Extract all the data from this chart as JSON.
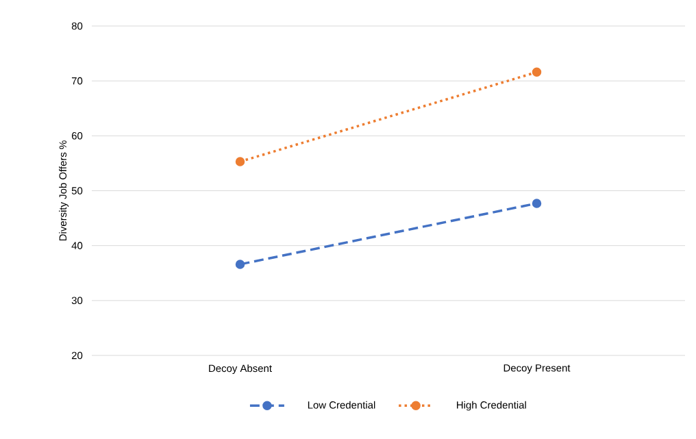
{
  "chart_data": {
    "type": "line",
    "ylabel": "Diversity Job Offers %",
    "categories": [
      "Decoy Absent",
      "Decoy Present"
    ],
    "series": [
      {
        "name": "Low Credential",
        "color": "#4472c4",
        "values": [
          36.6,
          47.7
        ],
        "line_style": "dashed"
      },
      {
        "name": "High Credential",
        "color": "#ed7d31",
        "values": [
          55.3,
          71.6
        ],
        "line_style": "dotted"
      }
    ],
    "ylim": [
      20,
      80
    ],
    "yticks": [
      20,
      30,
      40,
      50,
      60,
      70,
      80
    ],
    "grid": "y",
    "legend": "bottom",
    "marker": "circle"
  }
}
